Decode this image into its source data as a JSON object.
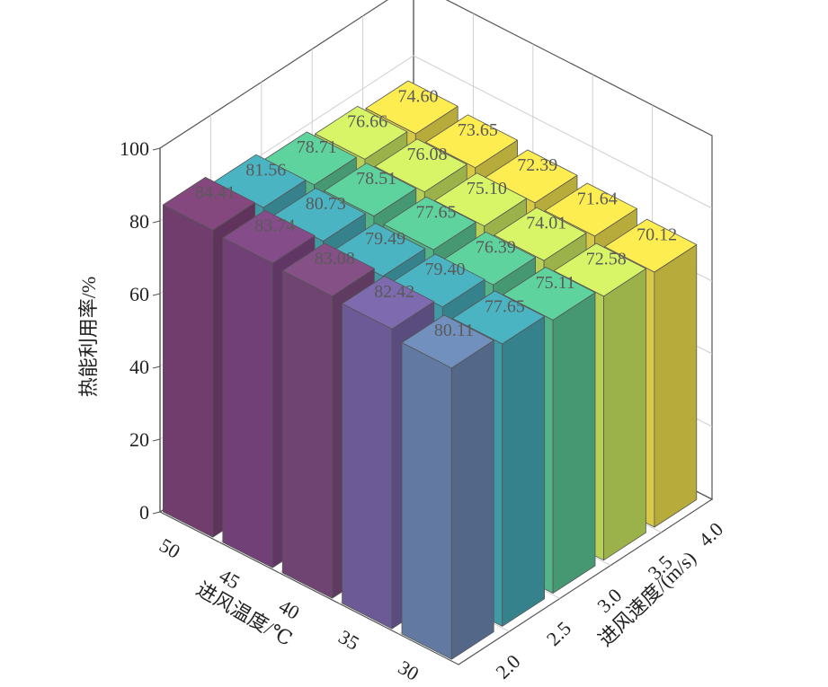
{
  "chart_data": {
    "type": "bar3d",
    "zlabel": "热能利用率/%",
    "xlabel": "进风温度/℃",
    "ylabel": "进风速度/(m/s)",
    "z_ticks": [
      "0",
      "20",
      "40",
      "60",
      "80",
      "100"
    ],
    "zlim": [
      0,
      100
    ],
    "x_categories": [
      "50",
      "45",
      "40",
      "35",
      "30"
    ],
    "y_categories": [
      "2.0",
      "2.5",
      "3.0",
      "3.5",
      "4.0"
    ],
    "values": [
      [
        84.41,
        81.56,
        78.71,
        76.66,
        74.6
      ],
      [
        83.74,
        80.73,
        78.51,
        76.08,
        73.65
      ],
      [
        83.08,
        79.49,
        77.65,
        75.1,
        72.39
      ],
      [
        82.42,
        79.4,
        76.39,
        74.01,
        71.64
      ],
      [
        80.11,
        77.65,
        75.11,
        72.58,
        70.12
      ]
    ],
    "grid": true,
    "colors": {
      "x50": "#7a4275",
      "x45": "#7b4680",
      "x40": "#7a4a7c",
      "x35": "#7462a2",
      "x30": "#6a85b0",
      "y2.5": "#45a7b4",
      "y3.0": "#58c392",
      "y3.5": "#c7e35e",
      "y4.0": "#ebdb4b"
    }
  }
}
